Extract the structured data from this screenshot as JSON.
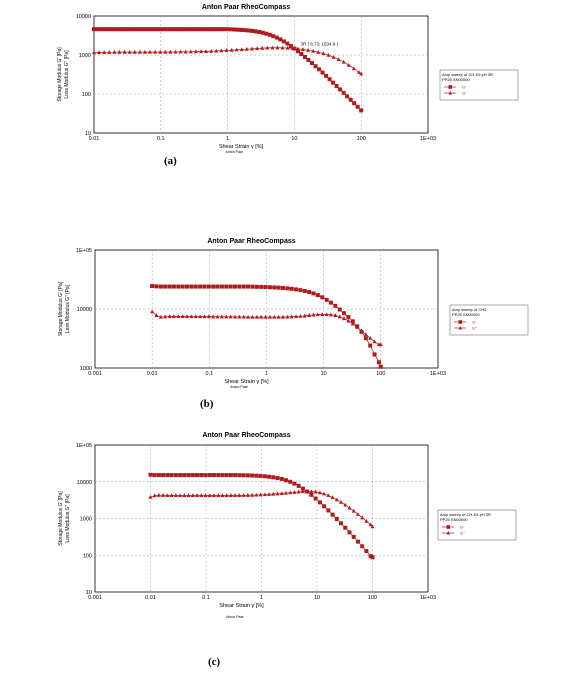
{
  "colors": {
    "series": "#b01c1c",
    "grid": "#a0a0a0",
    "axis": "#000000"
  },
  "chart_data": [
    {
      "type": "scatter",
      "panel_label": "(a)",
      "title": "Anton Paar RheoCompass",
      "xlabel": "Shear Strain γ [%]",
      "ylabel": "Storage Modulus G' [Pa]",
      "ylabel2": "Loss Modulus G\" [Pa]",
      "xscale": "log",
      "yscale": "log",
      "xlim": [
        0.01,
        1000
      ],
      "ylim": [
        10,
        10000
      ],
      "xticks": [
        "0.01",
        "0.1",
        "1",
        "10",
        "100",
        "1E+03"
      ],
      "yticks": [
        "10",
        "100",
        "1000",
        "10000"
      ],
      "grid": true,
      "legend": {
        "title": "Amp sweep of CH-K5 pH 3R",
        "subtitle": "PP25 SN00000",
        "entries": [
          "G'",
          "G\""
        ]
      },
      "footer": "Anton Paar",
      "annotation": {
        "text": "3R  ( 8.73; 1534.9 )",
        "x": 8.73,
        "y": 1534.9
      },
      "series": [
        {
          "name": "G'",
          "marker": "square",
          "x": [
            0.01,
            0.0113,
            0.0127,
            0.0144,
            0.0162,
            0.0183,
            0.0207,
            0.0234,
            0.0264,
            0.0298,
            0.0336,
            0.0379,
            0.0428,
            0.0483,
            0.0546,
            0.0616,
            0.0695,
            0.0785,
            0.0886,
            0.1,
            0.113,
            0.127,
            0.144,
            0.162,
            0.183,
            0.207,
            0.234,
            0.264,
            0.298,
            0.336,
            0.379,
            0.428,
            0.483,
            0.546,
            0.616,
            0.695,
            0.785,
            0.886,
            1,
            1.13,
            1.27,
            1.44,
            1.62,
            1.83,
            2.07,
            2.34,
            2.64,
            2.98,
            3.36,
            3.79,
            4.28,
            4.83,
            5.46,
            6.16,
            6.95,
            7.85,
            8.86,
            10,
            11.3,
            12.7,
            14.4,
            16.2,
            18.3,
            20.7,
            23.4,
            26.4,
            29.8,
            33.6,
            37.9,
            42.8,
            48.3,
            54.6,
            61.6,
            69.5,
            78.5,
            88.6,
            100
          ],
          "values": [
            4600,
            4600,
            4600,
            4600,
            4600,
            4600,
            4600,
            4600,
            4600,
            4600,
            4600,
            4600,
            4600,
            4600,
            4600,
            4600,
            4600,
            4600,
            4600,
            4600,
            4600,
            4600,
            4600,
            4600,
            4600,
            4600,
            4600,
            4600,
            4600,
            4600,
            4600,
            4600,
            4600,
            4600,
            4600,
            4600,
            4600,
            4600,
            4600,
            4550,
            4500,
            4450,
            4400,
            4330,
            4250,
            4150,
            4030,
            3890,
            3720,
            3520,
            3300,
            3050,
            2790,
            2510,
            2230,
            1960,
            1700,
            1460,
            1250,
            1060,
            890,
            745,
            622,
            517,
            429,
            354,
            291,
            239,
            196,
            160,
            131,
            107,
            87,
            71,
            58,
            47,
            38
          ]
        },
        {
          "name": "G\"",
          "marker": "triangle",
          "x": [
            0.01,
            0.0119,
            0.0142,
            0.0169,
            0.0202,
            0.024,
            0.0287,
            0.0342,
            0.0407,
            0.0486,
            0.0579,
            0.069,
            0.0823,
            0.0981,
            0.117,
            0.139,
            0.166,
            0.198,
            0.236,
            0.281,
            0.335,
            0.4,
            0.476,
            0.568,
            0.677,
            0.807,
            0.962,
            1.15,
            1.37,
            1.63,
            1.94,
            2.32,
            2.76,
            3.29,
            3.92,
            4.68,
            5.58,
            6.65,
            7.92,
            9.45,
            11.3,
            13.4,
            16,
            19.1,
            22.7,
            27.1,
            32.3,
            38.5,
            45.9,
            54.7,
            65.2,
            77.7,
            92.6,
            100
          ],
          "values": [
            1150,
            1160,
            1170,
            1175,
            1180,
            1185,
            1185,
            1185,
            1185,
            1185,
            1185,
            1190,
            1190,
            1195,
            1195,
            1195,
            1200,
            1200,
            1205,
            1210,
            1220,
            1230,
            1240,
            1255,
            1270,
            1290,
            1310,
            1335,
            1360,
            1385,
            1410,
            1440,
            1470,
            1500,
            1520,
            1535,
            1535,
            1530,
            1510,
            1480,
            1440,
            1390,
            1330,
            1260,
            1180,
            1090,
            990,
            880,
            770,
            660,
            550,
            450,
            360,
            330
          ]
        }
      ]
    },
    {
      "type": "scatter",
      "panel_label": "(b)",
      "title": "Anton Paar RheoCompass",
      "xlabel": "Shear Strain γ [%]",
      "ylabel": "Storage Modulus G' [Pa]",
      "ylabel2": "Loss Modulus G\" [Pa]",
      "xscale": "log",
      "yscale": "log",
      "xlim": [
        0.001,
        1000
      ],
      "ylim": [
        1000,
        100000
      ],
      "xticks": [
        "0.001",
        "0.01",
        "0.1",
        "1",
        "10",
        "100",
        "1E+03"
      ],
      "yticks": [
        "1000",
        "10000",
        "1E+05"
      ],
      "grid": true,
      "legend": {
        "title": "Amp sweep of CH5",
        "subtitle": "PP25 SN00000",
        "entries": [
          "G'",
          "G\""
        ]
      },
      "footer": "Anton Paar",
      "series": [
        {
          "name": "G'",
          "marker": "square",
          "x": [
            0.01,
            0.0119,
            0.0142,
            0.0169,
            0.0202,
            0.024,
            0.0287,
            0.0342,
            0.0407,
            0.0486,
            0.0579,
            0.069,
            0.0823,
            0.0981,
            0.117,
            0.139,
            0.166,
            0.198,
            0.236,
            0.281,
            0.335,
            0.4,
            0.476,
            0.568,
            0.677,
            0.807,
            0.962,
            1.15,
            1.37,
            1.63,
            1.94,
            2.32,
            2.76,
            3.29,
            3.92,
            4.68,
            5.58,
            6.65,
            7.92,
            9.45,
            11.3,
            13.4,
            16,
            19.1,
            22.7,
            27.1,
            32.3,
            38.5,
            45.9,
            54.7,
            65.2,
            77.7,
            92.6,
            100
          ],
          "values": [
            24500,
            24200,
            24000,
            24000,
            24000,
            24000,
            24000,
            24000,
            24000,
            24000,
            24000,
            24000,
            24000,
            24000,
            24000,
            24000,
            24000,
            24000,
            24000,
            24000,
            24000,
            24000,
            24000,
            23900,
            23800,
            23700,
            23600,
            23400,
            23200,
            23000,
            22700,
            22400,
            22000,
            21500,
            20900,
            20200,
            19400,
            18400,
            17200,
            15800,
            14300,
            12800,
            11300,
            9800,
            8500,
            7300,
            6200,
            5100,
            4100,
            3200,
            2400,
            1700,
            1250,
            1050
          ]
        },
        {
          "name": "G\"",
          "marker": "triangle",
          "x": [
            0.01,
            0.0119,
            0.0142,
            0.0169,
            0.0202,
            0.024,
            0.0287,
            0.0342,
            0.0407,
            0.0486,
            0.0579,
            0.069,
            0.0823,
            0.0981,
            0.117,
            0.139,
            0.166,
            0.198,
            0.236,
            0.281,
            0.335,
            0.4,
            0.476,
            0.568,
            0.677,
            0.807,
            0.962,
            1.15,
            1.37,
            1.63,
            1.94,
            2.32,
            2.76,
            3.29,
            3.92,
            4.68,
            5.58,
            6.65,
            7.92,
            9.45,
            11.3,
            13.4,
            16,
            19.1,
            22.7,
            27.1,
            32.3,
            38.5,
            45.9,
            54.7,
            65.2,
            77.7,
            92.6,
            100
          ],
          "values": [
            9000,
            7800,
            7300,
            7400,
            7500,
            7500,
            7500,
            7500,
            7450,
            7450,
            7450,
            7450,
            7450,
            7450,
            7400,
            7400,
            7400,
            7400,
            7400,
            7350,
            7350,
            7350,
            7300,
            7300,
            7300,
            7300,
            7300,
            7300,
            7300,
            7300,
            7300,
            7350,
            7400,
            7450,
            7550,
            7650,
            7800,
            7950,
            8050,
            8100,
            8100,
            8000,
            7800,
            7400,
            6900,
            6300,
            5600,
            4900,
            4300,
            3700,
            3200,
            2800,
            2500,
            2500
          ]
        }
      ]
    },
    {
      "type": "scatter",
      "panel_label": "(c)",
      "title": "Anton Paar RheoCompass",
      "xlabel": "Shear Strain γ [%]",
      "ylabel": "Storage Modulus G' [Pa]",
      "ylabel2": "Loss Modulus G\" [Pa]",
      "xscale": "log",
      "yscale": "log",
      "xlim": [
        0.001,
        1000
      ],
      "ylim": [
        10,
        100000
      ],
      "xticks": [
        "0.001",
        "0.01",
        "0.1",
        "1",
        "10",
        "100",
        "1E+03"
      ],
      "yticks": [
        "10",
        "100",
        "1000",
        "10000",
        "1E+05"
      ],
      "grid": true,
      "legend": {
        "title": "Amp sweep of CH-K5 pH 3R",
        "subtitle": "PP25 SN00000",
        "entries": [
          "G'",
          "G\""
        ]
      },
      "footer": "Anton Paar",
      "series": [
        {
          "name": "G'",
          "marker": "square",
          "x": [
            0.01,
            0.0119,
            0.0142,
            0.0169,
            0.0202,
            0.024,
            0.0287,
            0.0342,
            0.0407,
            0.0486,
            0.0579,
            0.069,
            0.0823,
            0.0981,
            0.117,
            0.139,
            0.166,
            0.198,
            0.236,
            0.281,
            0.335,
            0.4,
            0.476,
            0.568,
            0.677,
            0.807,
            0.962,
            1.15,
            1.37,
            1.63,
            1.94,
            2.32,
            2.76,
            3.29,
            3.92,
            4.68,
            5.58,
            6.65,
            7.92,
            9.45,
            11.3,
            13.4,
            16,
            19.1,
            22.7,
            27.1,
            32.3,
            38.5,
            45.9,
            54.7,
            65.2,
            77.7,
            92.6,
            100
          ],
          "values": [
            15500,
            15200,
            15200,
            15200,
            15200,
            15200,
            15200,
            15200,
            15200,
            15200,
            15200,
            15200,
            15200,
            15200,
            15200,
            15200,
            15200,
            15200,
            15200,
            15200,
            15200,
            15100,
            15000,
            14900,
            14800,
            14600,
            14400,
            14100,
            13700,
            13200,
            12600,
            11900,
            11000,
            10000,
            8900,
            7700,
            6500,
            5400,
            4400,
            3500,
            2750,
            2150,
            1660,
            1270,
            970,
            740,
            560,
            420,
            315,
            235,
            175,
            130,
            95,
            88
          ]
        },
        {
          "name": "G\"",
          "marker": "triangle",
          "x": [
            0.01,
            0.0119,
            0.0142,
            0.0169,
            0.0202,
            0.024,
            0.0287,
            0.0342,
            0.0407,
            0.0486,
            0.0579,
            0.069,
            0.0823,
            0.0981,
            0.117,
            0.139,
            0.166,
            0.198,
            0.236,
            0.281,
            0.335,
            0.4,
            0.476,
            0.568,
            0.677,
            0.807,
            0.962,
            1.15,
            1.37,
            1.63,
            1.94,
            2.32,
            2.76,
            3.29,
            3.92,
            4.68,
            5.58,
            6.65,
            7.92,
            9.45,
            11.3,
            13.4,
            16,
            19.1,
            22.7,
            27.1,
            32.3,
            38.5,
            45.9,
            54.7,
            65.2,
            77.7,
            92.6,
            100
          ],
          "values": [
            3800,
            4200,
            4300,
            4300,
            4250,
            4250,
            4250,
            4250,
            4250,
            4250,
            4250,
            4250,
            4250,
            4250,
            4250,
            4250,
            4250,
            4250,
            4250,
            4250,
            4250,
            4260,
            4280,
            4300,
            4330,
            4370,
            4420,
            4480,
            4550,
            4630,
            4720,
            4820,
            4930,
            5050,
            5180,
            5300,
            5400,
            5450,
            5420,
            5300,
            5050,
            4700,
            4250,
            3750,
            3250,
            2780,
            2350,
            1950,
            1600,
            1300,
            1050,
            850,
            680,
            600
          ]
        }
      ]
    }
  ]
}
